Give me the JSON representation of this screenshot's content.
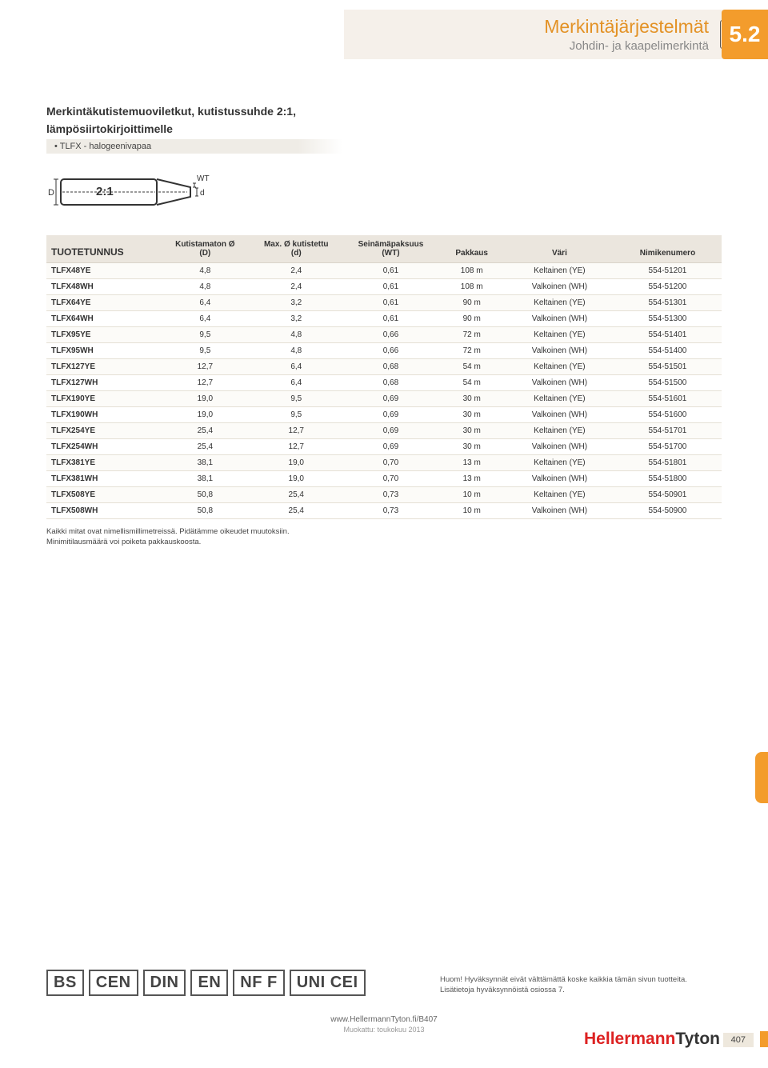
{
  "header": {
    "title": "Merkintäjärjestelmät",
    "subtitle": "Johdin- ja kaapelimerkintä",
    "section": "5.2"
  },
  "product": {
    "title_line1": "Merkintäkutistemuoviletkut, kutistussuhde 2:1,",
    "title_line2": "lämpösiirtokirjoittimelle",
    "variant": "TLFX - halogeenivapaa"
  },
  "diagram": {
    "D_label": "D",
    "ratio_label": "2:1",
    "WT_label": "WT",
    "d_label": "d"
  },
  "table": {
    "columns": [
      "TUOTETUNNUS",
      "Kutistamaton Ø\n(D)",
      "Max. Ø kutistettu\n(d)",
      "Seinämäpaksuus\n(WT)",
      "Pakkaus",
      "Väri",
      "Nimikenumero"
    ],
    "col_widths": [
      "17%",
      "13%",
      "14%",
      "14%",
      "10%",
      "16%",
      "16%"
    ],
    "rows": [
      [
        "TLFX48YE",
        "4,8",
        "2,4",
        "0,61",
        "108 m",
        "Keltainen (YE)",
        "554-51201"
      ],
      [
        "TLFX48WH",
        "4,8",
        "2,4",
        "0,61",
        "108 m",
        "Valkoinen (WH)",
        "554-51200"
      ],
      [
        "TLFX64YE",
        "6,4",
        "3,2",
        "0,61",
        "90 m",
        "Keltainen (YE)",
        "554-51301"
      ],
      [
        "TLFX64WH",
        "6,4",
        "3,2",
        "0,61",
        "90 m",
        "Valkoinen (WH)",
        "554-51300"
      ],
      [
        "TLFX95YE",
        "9,5",
        "4,8",
        "0,66",
        "72 m",
        "Keltainen (YE)",
        "554-51401"
      ],
      [
        "TLFX95WH",
        "9,5",
        "4,8",
        "0,66",
        "72 m",
        "Valkoinen (WH)",
        "554-51400"
      ],
      [
        "TLFX127YE",
        "12,7",
        "6,4",
        "0,68",
        "54 m",
        "Keltainen (YE)",
        "554-51501"
      ],
      [
        "TLFX127WH",
        "12,7",
        "6,4",
        "0,68",
        "54 m",
        "Valkoinen (WH)",
        "554-51500"
      ],
      [
        "TLFX190YE",
        "19,0",
        "9,5",
        "0,69",
        "30 m",
        "Keltainen (YE)",
        "554-51601"
      ],
      [
        "TLFX190WH",
        "19,0",
        "9,5",
        "0,69",
        "30 m",
        "Valkoinen (WH)",
        "554-51600"
      ],
      [
        "TLFX254YE",
        "25,4",
        "12,7",
        "0,69",
        "30 m",
        "Keltainen (YE)",
        "554-51701"
      ],
      [
        "TLFX254WH",
        "25,4",
        "12,7",
        "0,69",
        "30 m",
        "Valkoinen (WH)",
        "554-51700"
      ],
      [
        "TLFX381YE",
        "38,1",
        "19,0",
        "0,70",
        "13 m",
        "Keltainen (YE)",
        "554-51801"
      ],
      [
        "TLFX381WH",
        "38,1",
        "19,0",
        "0,70",
        "13 m",
        "Valkoinen (WH)",
        "554-51800"
      ],
      [
        "TLFX508YE",
        "50,8",
        "25,4",
        "0,73",
        "10 m",
        "Keltainen (YE)",
        "554-50901"
      ],
      [
        "TLFX508WH",
        "50,8",
        "25,4",
        "0,73",
        "10 m",
        "Valkoinen (WH)",
        "554-50900"
      ]
    ]
  },
  "footnote": {
    "line1": "Kaikki mitat ovat nimellismillimetreissä. Pidätämme oikeudet muutoksiin.",
    "line2": "Minimitilausmäärä voi poiketa pakkauskoosta."
  },
  "standards": [
    "BS",
    "CEN",
    "DIN",
    "EN",
    "NF F",
    "UNI CEI"
  ],
  "approval": {
    "line1": "Huom! Hyväksynnät eivät välttämättä koske kaikkia tämän sivun tuotteita.",
    "line2": "Lisätietoja hyväksynnöistä osiossa 7."
  },
  "footer": {
    "url": "www.HellermannTyton.fi/B407",
    "date": "Muokattu: toukokuu 2013",
    "brand1": "Hellermann",
    "brand2": "Tyton",
    "page": "407"
  },
  "colors": {
    "accent": "#f39c2c",
    "header_bg": "#f5f0ea",
    "row_alt": "#fcfbf8",
    "th_bg": "#ebe6de",
    "brand_red": "#d22"
  }
}
